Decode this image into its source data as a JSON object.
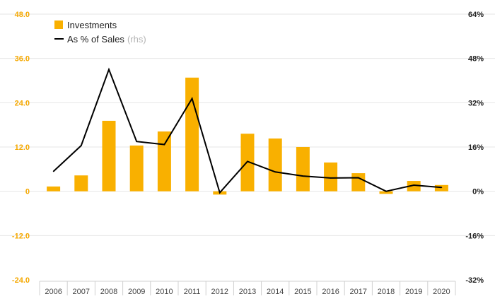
{
  "chart_data": {
    "type": "bar+line",
    "categories": [
      "2006",
      "2007",
      "2008",
      "2009",
      "2010",
      "2011",
      "2012",
      "2013",
      "2014",
      "2015",
      "2016",
      "2017",
      "2018",
      "2019",
      "2020"
    ],
    "series": [
      {
        "name": "Investments",
        "type": "bar",
        "axis": "left",
        "color": "#f9b000",
        "values": [
          1.3,
          4.3,
          19.1,
          12.4,
          16.2,
          30.8,
          -0.9,
          15.6,
          14.3,
          12.0,
          7.8,
          4.9,
          -0.7,
          2.8,
          1.7
        ]
      },
      {
        "name": "As % of Sales",
        "name_suffix": "(rhs)",
        "type": "line",
        "axis": "right",
        "color": "#000000",
        "values": [
          7.2,
          16.5,
          44.0,
          18.0,
          16.9,
          33.5,
          -0.5,
          10.8,
          7.0,
          5.5,
          4.8,
          4.9,
          0.0,
          2.2,
          1.4
        ]
      }
    ],
    "y_left": {
      "ticks": [
        48,
        36,
        24,
        12,
        0,
        -12,
        -24
      ],
      "tick_labels": [
        "48.0",
        "36.0",
        "24.0",
        "12.0",
        "0",
        "-12.0",
        "-24.0"
      ],
      "ylim": [
        -24,
        48
      ],
      "color": "#f5a800"
    },
    "y_right": {
      "ticks": [
        64,
        48,
        32,
        16,
        0,
        -16,
        -32
      ],
      "tick_labels": [
        "64%",
        "48%",
        "32%",
        "16%",
        "0%",
        "-16%",
        "-32%"
      ],
      "ylim": [
        -32,
        64
      ]
    },
    "grid": true,
    "legend": "top-left"
  }
}
